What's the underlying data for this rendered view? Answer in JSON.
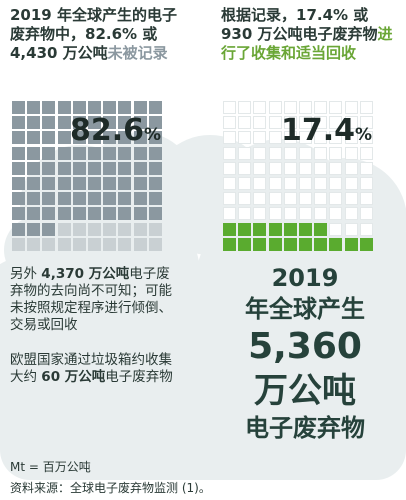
{
  "chart_data": [
    {
      "type": "waffle",
      "title_parts": [
        "2019 年全球产生的电子废弃物中，82.6% 或 4,430 万公吨",
        "未被记录"
      ],
      "value_percent": 82.6,
      "value_label": "82.6",
      "value_unit": "%",
      "grid": {
        "rows": 10,
        "cols": 10
      },
      "colors": {
        "filled": "#8b98a0",
        "highlight": "#8b98a0"
      }
    },
    {
      "type": "waffle",
      "title_parts": [
        "根据记录，17.4% 或 930 万公吨电子废弃物",
        "进行了收集和适当回收"
      ],
      "value_percent": 17.4,
      "value_label": "17.4",
      "value_unit": "%",
      "grid": {
        "rows": 10,
        "cols": 10
      },
      "colors": {
        "filled": "#5aab2f",
        "empty": "#ffffff"
      }
    }
  ],
  "left_notes": {
    "p1_pre": "另外 ",
    "p1_bold": "4,370 万公吨",
    "p1_post": "电子废弃物的去向尚不可知；可能未按照规定程序进行倾倒、交易或回收",
    "p2_pre": "欧盟国家通过垃圾箱约收集大约 ",
    "p2_bold": "60 万公吨",
    "p2_post": "电子废弃物"
  },
  "total": {
    "line1": "2019",
    "line2": "年全球产生",
    "line3": "5,360",
    "line4": "万公吨",
    "line5": "电子废弃物",
    "color": "#26423b"
  },
  "footer": {
    "unit_note": "Mt = 百万公吨",
    "source": "资料来源：全球电子废弃物监测 (1)。"
  }
}
